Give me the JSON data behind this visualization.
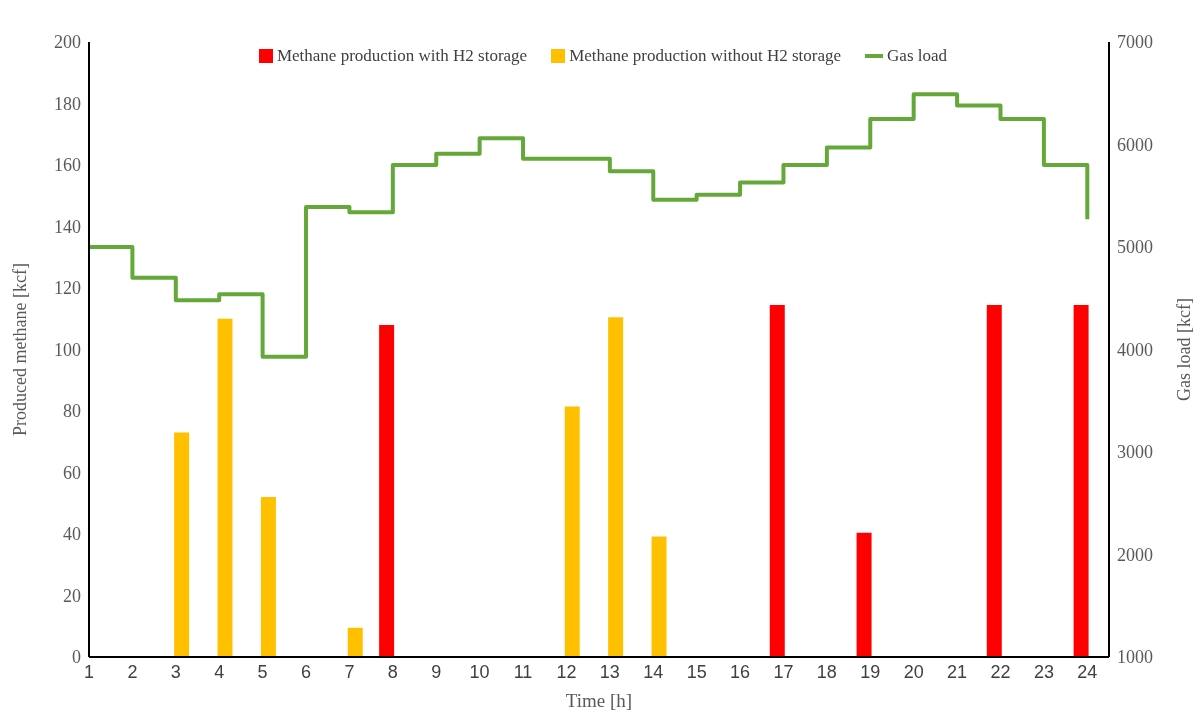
{
  "chart_data": {
    "type": "bar",
    "xlabel": "Time [h]",
    "ylabel": "Produced methane [kcf]",
    "y2label": "Gas load [kcf]",
    "x": [
      1,
      2,
      3,
      4,
      5,
      6,
      7,
      8,
      9,
      10,
      11,
      12,
      13,
      14,
      15,
      16,
      17,
      18,
      19,
      20,
      21,
      22,
      23,
      24
    ],
    "xlim": [
      1,
      24.5
    ],
    "xticks": [
      1,
      2,
      3,
      4,
      5,
      6,
      7,
      8,
      9,
      10,
      11,
      12,
      13,
      14,
      15,
      16,
      17,
      18,
      19,
      20,
      21,
      22,
      23,
      24
    ],
    "ylim": [
      0,
      200
    ],
    "yticks": [
      0,
      20,
      40,
      60,
      80,
      100,
      120,
      140,
      160,
      180,
      200
    ],
    "y2lim": [
      1000,
      7000
    ],
    "y2ticks": [
      1000,
      2000,
      3000,
      4000,
      5000,
      6000,
      7000
    ],
    "series": [
      {
        "name": "Methane production with H2 storage",
        "color": "#ff0000",
        "values": [
          null,
          null,
          null,
          null,
          null,
          null,
          null,
          108,
          null,
          null,
          null,
          null,
          null,
          null,
          null,
          null,
          114.5,
          null,
          40.4,
          null,
          null,
          114.5,
          null,
          114.5
        ]
      },
      {
        "name": "Methane production without H2 storage",
        "color": "#ffc000",
        "values": [
          null,
          null,
          73,
          110,
          52,
          null,
          9.5,
          null,
          null,
          null,
          null,
          81.5,
          110.5,
          39.2,
          null,
          null,
          null,
          null,
          null,
          null,
          null,
          null,
          null,
          null
        ]
      },
      {
        "name": "Gas load",
        "type": "step",
        "axis": "y2",
        "color": "#65a83a",
        "values": [
          5000,
          4700,
          4480,
          4540,
          3930,
          5390,
          5340,
          5800,
          5910,
          6060,
          5860,
          5860,
          5740,
          5460,
          5510,
          5630,
          5800,
          5970,
          6250,
          6490,
          6380,
          6250,
          5800,
          5270
        ]
      }
    ],
    "legend": "top",
    "grid": false
  }
}
